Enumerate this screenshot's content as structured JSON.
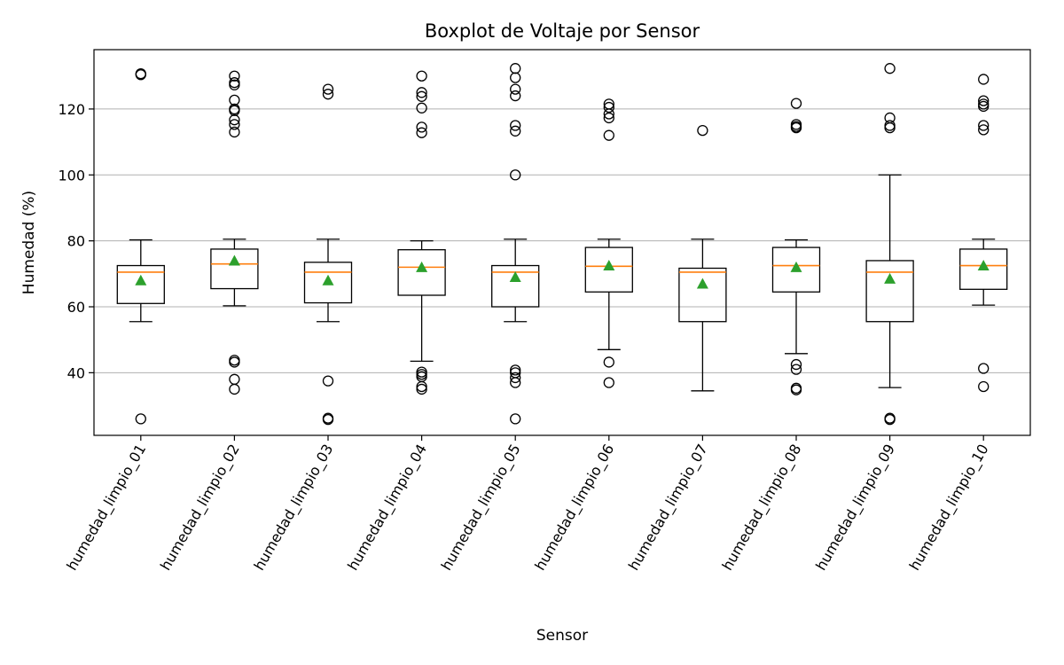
{
  "chart_data": {
    "type": "boxplot",
    "title": "Boxplot de Voltaje por Sensor",
    "xlabel": "Sensor",
    "ylabel": "Humedad (%)",
    "ylim": [
      21,
      138
    ],
    "yticks": [
      40,
      60,
      80,
      100,
      120
    ],
    "grid": "y",
    "colors": {
      "box": "#000000",
      "median": "#ff7f0e",
      "mean": "#2ca02c",
      "grid": "#b0b0b0"
    },
    "categories": [
      "humedad_limpio_01",
      "humedad_limpio_02",
      "humedad_limpio_03",
      "humedad_limpio_04",
      "humedad_limpio_05",
      "humedad_limpio_06",
      "humedad_limpio_07",
      "humedad_limpio_08",
      "humedad_limpio_09",
      "humedad_limpio_10"
    ],
    "boxes": [
      {
        "whisker_low": 55.5,
        "q1": 61.0,
        "median": 70.5,
        "q3": 72.5,
        "whisker_high": 80.3,
        "mean": 68.0,
        "outliers": [
          130.7,
          130.4,
          26.0
        ]
      },
      {
        "whisker_low": 60.3,
        "q1": 65.5,
        "median": 73.0,
        "q3": 77.5,
        "whisker_high": 80.5,
        "mean": 74.0,
        "outliers": [
          130.0,
          128.0,
          127.3,
          122.7,
          120.0,
          119.5,
          116.7,
          115.3,
          113.0,
          43.8,
          43.2,
          38.0,
          35.0
        ]
      },
      {
        "whisker_low": 55.5,
        "q1": 61.2,
        "median": 70.5,
        "q3": 73.5,
        "whisker_high": 80.5,
        "mean": 68.0,
        "outliers": [
          126.0,
          124.5,
          37.5,
          26.2,
          25.8
        ]
      },
      {
        "whisker_low": 43.5,
        "q1": 63.5,
        "median": 72.0,
        "q3": 77.3,
        "whisker_high": 80.0,
        "mean": 72.0,
        "outliers": [
          130.0,
          125.0,
          123.8,
          120.3,
          114.5,
          112.8,
          40.2,
          39.5,
          38.8,
          35.8,
          35.0
        ]
      },
      {
        "whisker_low": 55.5,
        "q1": 60.0,
        "median": 70.5,
        "q3": 72.5,
        "whisker_high": 80.5,
        "mean": 69.0,
        "outliers": [
          132.3,
          129.5,
          126.0,
          124.0,
          115.0,
          113.3,
          100.0,
          40.8,
          40.0,
          38.5,
          37.0,
          26.0
        ]
      },
      {
        "whisker_low": 47.0,
        "q1": 64.5,
        "median": 72.3,
        "q3": 78.0,
        "whisker_high": 80.5,
        "mean": 72.5,
        "outliers": [
          121.5,
          120.5,
          118.5,
          117.3,
          112.0,
          43.2,
          37.0
        ]
      },
      {
        "whisker_low": 34.5,
        "q1": 55.5,
        "median": 70.5,
        "q3": 71.7,
        "whisker_high": 80.5,
        "mean": 67.0,
        "outliers": [
          113.5
        ]
      },
      {
        "whisker_low": 45.8,
        "q1": 64.5,
        "median": 72.5,
        "q3": 78.0,
        "whisker_high": 80.3,
        "mean": 72.0,
        "outliers": [
          121.7,
          115.3,
          114.7,
          114.3,
          42.5,
          41.0,
          35.3,
          34.8
        ]
      },
      {
        "whisker_low": 35.5,
        "q1": 55.5,
        "median": 70.5,
        "q3": 74.0,
        "whisker_high": 100.0,
        "mean": 68.5,
        "outliers": [
          132.3,
          117.3,
          115.0,
          114.3,
          26.2,
          25.8
        ]
      },
      {
        "whisker_low": 60.5,
        "q1": 65.3,
        "median": 72.5,
        "q3": 77.5,
        "whisker_high": 80.5,
        "mean": 72.5,
        "outliers": [
          129.0,
          122.5,
          121.5,
          120.8,
          115.0,
          113.7,
          41.3,
          35.8
        ]
      }
    ]
  }
}
